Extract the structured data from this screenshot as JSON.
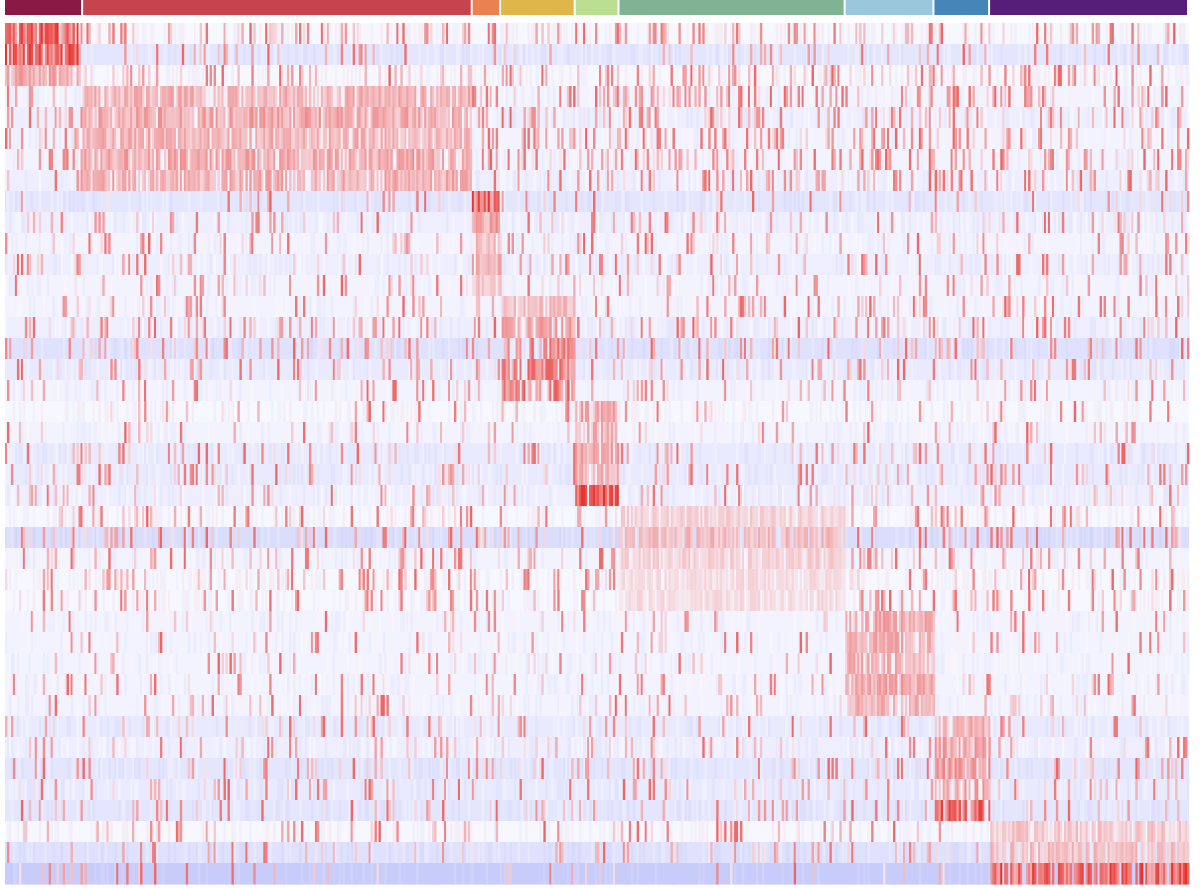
{
  "chart_data": {
    "type": "heatmap",
    "title": "",
    "xlabel": "",
    "ylabel": "",
    "legend": "none",
    "grid": false,
    "color_scale": {
      "low": "#c8ccfa",
      "mid": "#f7f7ff",
      "high": "#e8302a"
    },
    "value_range": [
      -1,
      3
    ],
    "cluster_bar": [
      {
        "color": "#8a1a45",
        "fraction": 0.066
      },
      {
        "color": "#c7444f",
        "fraction": 0.329
      },
      {
        "color": "#e98250",
        "fraction": 0.024
      },
      {
        "color": "#dfb64a",
        "fraction": 0.063
      },
      {
        "color": "#badf92",
        "fraction": 0.037
      },
      {
        "color": "#7fb393",
        "fraction": 0.191
      },
      {
        "color": "#9bc7dc",
        "fraction": 0.075
      },
      {
        "color": "#4585b8",
        "fraction": 0.047
      },
      {
        "color": "#561e79",
        "fraction": 0.17
      }
    ],
    "row_count": 41,
    "column_count": 596,
    "rows": [
      {
        "cluster": 0,
        "baseline": 0.0,
        "high": 3.0,
        "bg_noise": 0.22
      },
      {
        "cluster": 0,
        "baseline": -0.4,
        "high": 3.0,
        "bg_noise": 0.1
      },
      {
        "cluster": 0,
        "baseline": 0.0,
        "high": 1.6,
        "bg_noise": 0.2
      },
      {
        "cluster": 1,
        "baseline": -0.1,
        "high": 1.4,
        "bg_noise": 0.25
      },
      {
        "cluster": 1,
        "baseline": -0.2,
        "high": 1.6,
        "bg_noise": 0.22
      },
      {
        "cluster": 1,
        "baseline": -0.1,
        "high": 1.4,
        "bg_noise": 0.25
      },
      {
        "cluster": 1,
        "baseline": -0.1,
        "high": 1.6,
        "bg_noise": 0.24
      },
      {
        "cluster": 1,
        "baseline": -0.2,
        "high": 1.5,
        "bg_noise": 0.2
      },
      {
        "cluster": 2,
        "baseline": -0.4,
        "high": 3.0,
        "bg_noise": 0.08
      },
      {
        "cluster": 2,
        "baseline": -0.2,
        "high": 1.8,
        "bg_noise": 0.12
      },
      {
        "cluster": 2,
        "baseline": -0.1,
        "high": 1.2,
        "bg_noise": 0.12
      },
      {
        "cluster": 2,
        "baseline": -0.2,
        "high": 1.5,
        "bg_noise": 0.12
      },
      {
        "cluster": 2,
        "baseline": -0.1,
        "high": 1.0,
        "bg_noise": 0.1
      },
      {
        "cluster": 3,
        "baseline": -0.1,
        "high": 1.2,
        "bg_noise": 0.12
      },
      {
        "cluster": 3,
        "baseline": -0.2,
        "high": 1.6,
        "bg_noise": 0.14
      },
      {
        "cluster": 3,
        "baseline": -0.5,
        "high": 2.2,
        "bg_noise": 0.16
      },
      {
        "cluster": 3,
        "baseline": -0.3,
        "high": 2.3,
        "bg_noise": 0.14
      },
      {
        "cluster": 3,
        "baseline": -0.1,
        "high": 2.4,
        "bg_noise": 0.12
      },
      {
        "cluster": 4,
        "baseline": 0.0,
        "high": 1.6,
        "bg_noise": 0.08
      },
      {
        "cluster": 4,
        "baseline": -0.1,
        "high": 1.4,
        "bg_noise": 0.08
      },
      {
        "cluster": 4,
        "baseline": -0.3,
        "high": 1.6,
        "bg_noise": 0.12
      },
      {
        "cluster": 4,
        "baseline": -0.3,
        "high": 1.4,
        "bg_noise": 0.14
      },
      {
        "cluster": 4,
        "baseline": -0.2,
        "high": 3.0,
        "bg_noise": 0.12
      },
      {
        "cluster": 5,
        "baseline": 0.0,
        "high": 0.8,
        "bg_noise": 0.14
      },
      {
        "cluster": 5,
        "baseline": -0.6,
        "high": 1.2,
        "bg_noise": 0.16
      },
      {
        "cluster": 5,
        "baseline": -0.1,
        "high": 0.8,
        "bg_noise": 0.16
      },
      {
        "cluster": 5,
        "baseline": 0.0,
        "high": 0.6,
        "bg_noise": 0.16
      },
      {
        "cluster": 5,
        "baseline": 0.0,
        "high": 0.6,
        "bg_noise": 0.16
      },
      {
        "cluster": 6,
        "baseline": -0.1,
        "high": 1.6,
        "bg_noise": 0.06
      },
      {
        "cluster": 6,
        "baseline": -0.1,
        "high": 1.5,
        "bg_noise": 0.06
      },
      {
        "cluster": 6,
        "baseline": -0.1,
        "high": 1.4,
        "bg_noise": 0.08
      },
      {
        "cluster": 6,
        "baseline": -0.1,
        "high": 1.6,
        "bg_noise": 0.08
      },
      {
        "cluster": 6,
        "baseline": -0.1,
        "high": 1.4,
        "bg_noise": 0.1
      },
      {
        "cluster": 7,
        "baseline": -0.3,
        "high": 1.4,
        "bg_noise": 0.12
      },
      {
        "cluster": 7,
        "baseline": -0.2,
        "high": 1.6,
        "bg_noise": 0.12
      },
      {
        "cluster": 7,
        "baseline": -0.4,
        "high": 1.8,
        "bg_noise": 0.12
      },
      {
        "cluster": 7,
        "baseline": -0.3,
        "high": 1.6,
        "bg_noise": 0.14
      },
      {
        "cluster": 7,
        "baseline": -0.4,
        "high": 3.0,
        "bg_noise": 0.12
      },
      {
        "cluster": 8,
        "baseline": 0.0,
        "high": 1.0,
        "bg_noise": 0.12
      },
      {
        "cluster": 8,
        "baseline": -0.5,
        "high": 1.2,
        "bg_noise": 0.12
      },
      {
        "cluster": 8,
        "baseline": -1.0,
        "high": 3.0,
        "bg_noise": 0.06
      }
    ]
  }
}
